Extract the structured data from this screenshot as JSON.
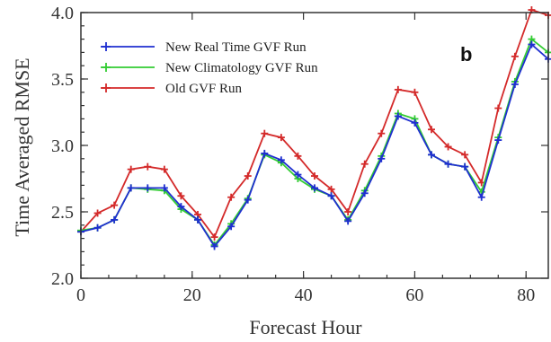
{
  "chart_data": {
    "type": "line",
    "title": "",
    "panel_label": "b",
    "xlabel": "Forecast Hour",
    "ylabel": "Time Averaged RMSE",
    "xlim": [
      0,
      84
    ],
    "ylim": [
      2.0,
      4.0
    ],
    "xticks": [
      0,
      20,
      40,
      60,
      80
    ],
    "yticks": [
      2.0,
      2.5,
      3.0,
      3.5,
      4.0
    ],
    "xtick_labels": [
      "0",
      "20",
      "40",
      "60",
      "80"
    ],
    "ytick_labels": [
      "2.0",
      "2.5",
      "3.0",
      "3.5",
      "4.0"
    ],
    "grid": false,
    "legend_position": "top-left",
    "x": [
      0,
      3,
      6,
      9,
      12,
      15,
      18,
      21,
      24,
      27,
      30,
      33,
      36,
      39,
      42,
      45,
      48,
      51,
      54,
      57,
      60,
      63,
      66,
      69,
      72,
      75,
      78,
      81,
      84
    ],
    "series": [
      {
        "name": "New Real Time GVF Run",
        "color": "#1f2fd0",
        "values": [
          2.35,
          2.38,
          2.44,
          2.68,
          2.68,
          2.68,
          2.54,
          2.44,
          2.24,
          2.39,
          2.59,
          2.94,
          2.89,
          2.78,
          2.68,
          2.62,
          2.43,
          2.64,
          2.9,
          3.22,
          3.17,
          2.93,
          2.86,
          2.84,
          2.61,
          3.04,
          3.46,
          3.76,
          3.65
        ]
      },
      {
        "name": "New Climatology GVF Run",
        "color": "#33cc33",
        "values": [
          2.36,
          2.38,
          2.44,
          2.68,
          2.67,
          2.66,
          2.52,
          2.44,
          2.25,
          2.41,
          2.6,
          2.93,
          2.87,
          2.75,
          2.67,
          2.62,
          2.44,
          2.66,
          2.92,
          3.24,
          3.2,
          2.93,
          2.86,
          2.84,
          2.65,
          3.06,
          3.48,
          3.8,
          3.7
        ]
      },
      {
        "name": "Old GVF Run",
        "color": "#d42a2a",
        "values": [
          2.35,
          2.49,
          2.55,
          2.82,
          2.84,
          2.82,
          2.62,
          2.48,
          2.31,
          2.61,
          2.77,
          3.09,
          3.06,
          2.92,
          2.77,
          2.67,
          2.5,
          2.86,
          3.09,
          3.42,
          3.4,
          3.12,
          2.99,
          2.93,
          2.72,
          3.28,
          3.67,
          4.02,
          3.98
        ]
      }
    ]
  }
}
